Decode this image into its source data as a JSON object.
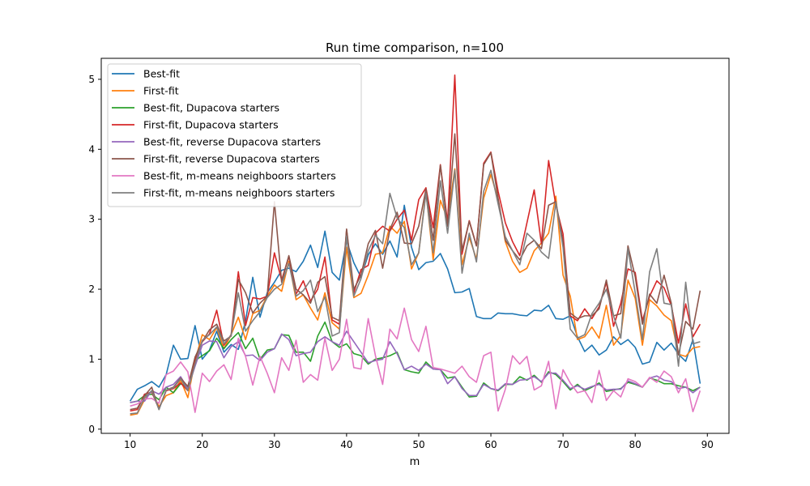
{
  "chart_data": {
    "type": "line",
    "title": "Run time comparison, n=100",
    "xlabel": "m",
    "ylabel": "",
    "xlim": [
      6,
      93
    ],
    "ylim": [
      -0.06,
      5.3
    ],
    "xticks": [
      10,
      20,
      30,
      40,
      50,
      60,
      70,
      80,
      90
    ],
    "yticks": [
      0,
      1,
      2,
      3,
      4,
      5
    ],
    "grid": false,
    "legend_position": "top-left",
    "x": [
      10,
      11,
      12,
      13,
      14,
      15,
      16,
      17,
      18,
      19,
      20,
      21,
      22,
      23,
      24,
      25,
      26,
      27,
      28,
      29,
      30,
      31,
      32,
      33,
      34,
      35,
      36,
      37,
      38,
      39,
      40,
      41,
      42,
      43,
      44,
      45,
      46,
      47,
      48,
      49,
      50,
      51,
      52,
      53,
      54,
      55,
      56,
      57,
      58,
      59,
      60,
      61,
      62,
      63,
      64,
      65,
      66,
      67,
      68,
      69,
      70,
      71,
      72,
      73,
      74,
      75,
      76,
      77,
      78,
      79,
      80,
      81,
      82,
      83,
      84,
      85,
      86,
      87,
      88,
      89
    ],
    "series": [
      {
        "name": "Best-fit",
        "color": "#1f77b4",
        "values": [
          0.4,
          0.57,
          0.62,
          0.68,
          0.6,
          0.78,
          1.2,
          1.0,
          1.01,
          1.48,
          1.0,
          1.13,
          1.4,
          1.1,
          1.21,
          1.14,
          1.55,
          2.17,
          1.6,
          1.95,
          2.1,
          2.27,
          2.3,
          2.25,
          2.4,
          2.63,
          2.31,
          2.83,
          2.24,
          2.13,
          2.69,
          2.38,
          2.17,
          2.49,
          2.65,
          2.5,
          2.69,
          2.46,
          3.2,
          2.6,
          2.28,
          2.38,
          2.4,
          2.51,
          2.29,
          1.95,
          1.96,
          2.01,
          1.61,
          1.58,
          1.58,
          1.66,
          1.65,
          1.65,
          1.63,
          1.62,
          1.7,
          1.69,
          1.77,
          1.58,
          1.57,
          1.62,
          1.32,
          1.11,
          1.2,
          1.06,
          1.13,
          1.32,
          1.21,
          1.28,
          1.17,
          0.93,
          0.96,
          1.24,
          1.13,
          1.23,
          1.07,
          0.97,
          1.28,
          0.65
        ]
      },
      {
        "name": "First-fit",
        "color": "#ff7f0e",
        "values": [
          0.2,
          0.22,
          0.42,
          0.55,
          0.32,
          0.48,
          0.52,
          0.7,
          0.45,
          0.98,
          1.35,
          1.28,
          1.45,
          1.15,
          1.35,
          1.6,
          1.28,
          1.65,
          1.7,
          1.9,
          2.06,
          1.97,
          2.4,
          1.85,
          1.92,
          1.73,
          1.56,
          1.95,
          1.52,
          1.43,
          2.6,
          1.88,
          1.94,
          2.2,
          2.5,
          2.52,
          2.9,
          2.8,
          2.97,
          2.29,
          2.52,
          3.4,
          2.42,
          3.27,
          3.0,
          3.72,
          2.35,
          2.74,
          2.43,
          3.3,
          3.64,
          3.28,
          2.68,
          2.4,
          2.24,
          2.3,
          2.55,
          2.66,
          2.8,
          3.33,
          2.2,
          1.9,
          1.28,
          1.32,
          1.46,
          1.3,
          1.77,
          1.2,
          1.34,
          2.13,
          1.87,
          1.2,
          1.85,
          1.76,
          1.63,
          1.55,
          1.07,
          1.04,
          1.16,
          1.18
        ]
      },
      {
        "name": "Best-fit, Dupacova starters",
        "color": "#2ca02c",
        "values": [
          0.38,
          0.4,
          0.48,
          0.5,
          0.42,
          0.6,
          0.52,
          0.65,
          0.6,
          0.98,
          1.05,
          1.12,
          1.3,
          1.15,
          1.28,
          1.38,
          1.15,
          1.3,
          1.0,
          1.13,
          1.15,
          1.35,
          1.34,
          1.1,
          1.1,
          0.97,
          1.33,
          1.53,
          1.25,
          1.17,
          1.22,
          1.08,
          1.05,
          0.93,
          1.0,
          1.02,
          1.05,
          1.1,
          0.85,
          0.82,
          0.8,
          0.96,
          0.86,
          0.85,
          0.73,
          0.75,
          0.6,
          0.46,
          0.47,
          0.66,
          0.58,
          0.55,
          0.64,
          0.64,
          0.75,
          0.7,
          0.77,
          0.67,
          0.82,
          0.78,
          0.68,
          0.56,
          0.64,
          0.55,
          0.6,
          0.66,
          0.54,
          0.56,
          0.58,
          0.67,
          0.64,
          0.6,
          0.73,
          0.7,
          0.65,
          0.65,
          0.62,
          0.6,
          0.55,
          0.6
        ]
      },
      {
        "name": "First-fit, Dupacova starters",
        "color": "#d62728",
        "values": [
          0.26,
          0.28,
          0.5,
          0.53,
          0.29,
          0.55,
          0.58,
          0.66,
          0.55,
          1.0,
          1.25,
          1.36,
          1.7,
          1.2,
          1.35,
          2.25,
          1.48,
          1.88,
          1.86,
          1.9,
          2.52,
          2.13,
          2.47,
          1.93,
          2.12,
          1.83,
          2.0,
          2.46,
          1.56,
          1.5,
          2.85,
          1.95,
          2.28,
          2.34,
          2.8,
          2.9,
          2.83,
          3.0,
          3.13,
          2.7,
          3.28,
          3.45,
          2.88,
          3.78,
          2.95,
          5.06,
          2.5,
          2.98,
          2.62,
          3.8,
          3.96,
          3.4,
          2.95,
          2.68,
          2.48,
          2.95,
          3.42,
          2.65,
          3.84,
          3.2,
          2.79,
          1.62,
          1.55,
          1.72,
          1.58,
          1.75,
          2.1,
          1.47,
          1.8,
          2.29,
          2.24,
          1.55,
          1.9,
          2.12,
          2.02,
          1.77,
          1.23,
          1.79,
          1.32,
          1.5
        ]
      },
      {
        "name": "Best-fit, reverse Dupacova starters",
        "color": "#9467bd",
        "values": [
          0.38,
          0.4,
          0.4,
          0.55,
          0.5,
          0.6,
          0.64,
          0.75,
          0.58,
          0.9,
          1.2,
          1.26,
          1.25,
          1.02,
          1.18,
          1.25,
          1.05,
          1.06,
          0.98,
          1.1,
          1.15,
          1.36,
          1.28,
          1.05,
          1.08,
          1.1,
          1.25,
          1.32,
          1.25,
          1.2,
          1.4,
          1.25,
          1.1,
          0.95,
          0.98,
          1.0,
          1.25,
          1.08,
          0.85,
          0.9,
          0.84,
          0.93,
          0.86,
          0.85,
          0.65,
          0.75,
          0.58,
          0.48,
          0.48,
          0.64,
          0.58,
          0.56,
          0.65,
          0.64,
          0.7,
          0.71,
          0.75,
          0.68,
          0.8,
          0.8,
          0.7,
          0.58,
          0.62,
          0.57,
          0.61,
          0.64,
          0.56,
          0.57,
          0.57,
          0.69,
          0.65,
          0.6,
          0.73,
          0.76,
          0.7,
          0.68,
          0.58,
          0.6,
          0.52,
          0.6
        ]
      },
      {
        "name": "First-fit, reverse Dupacova starters",
        "color": "#8c564b",
        "values": [
          0.28,
          0.3,
          0.48,
          0.6,
          0.28,
          0.56,
          0.6,
          0.73,
          0.61,
          1.03,
          1.25,
          1.42,
          1.5,
          1.26,
          1.33,
          2.14,
          1.95,
          1.66,
          1.8,
          1.9,
          3.25,
          2.1,
          2.48,
          2.0,
          1.92,
          1.8,
          2.1,
          2.18,
          1.6,
          1.55,
          2.86,
          2.0,
          2.2,
          2.65,
          2.84,
          2.3,
          2.85,
          3.1,
          2.66,
          2.65,
          2.9,
          3.43,
          2.7,
          3.77,
          2.9,
          4.22,
          2.55,
          2.97,
          2.62,
          3.78,
          3.95,
          3.3,
          2.7,
          2.55,
          2.42,
          2.62,
          2.7,
          2.58,
          3.2,
          3.25,
          2.68,
          1.66,
          1.58,
          1.62,
          1.62,
          1.72,
          2.13,
          1.62,
          1.65,
          2.62,
          2.18,
          1.5,
          1.93,
          1.8,
          2.2,
          1.8,
          1.06,
          1.54,
          1.43,
          1.98
        ]
      },
      {
        "name": "Best-fit, m-means neighboors starters",
        "color": "#e377c2",
        "values": [
          0.33,
          0.36,
          0.43,
          0.44,
          0.37,
          0.78,
          0.83,
          0.96,
          0.82,
          0.24,
          0.8,
          0.68,
          0.83,
          0.92,
          0.71,
          1.3,
          1.04,
          0.63,
          1.04,
          0.8,
          0.52,
          1.02,
          0.84,
          1.27,
          0.67,
          0.78,
          0.7,
          1.3,
          0.84,
          1.0,
          1.57,
          0.88,
          0.86,
          1.58,
          1.05,
          0.64,
          1.43,
          1.29,
          1.73,
          1.28,
          1.11,
          1.47,
          0.88,
          0.86,
          0.83,
          0.8,
          0.9,
          0.75,
          0.67,
          1.05,
          1.1,
          0.26,
          0.57,
          1.05,
          0.93,
          1.04,
          0.56,
          0.62,
          0.97,
          0.29,
          0.85,
          0.66,
          0.52,
          0.55,
          0.38,
          0.84,
          0.41,
          0.55,
          0.46,
          0.72,
          0.68,
          0.6,
          0.74,
          0.67,
          0.83,
          0.75,
          0.52,
          0.72,
          0.25,
          0.55
        ]
      },
      {
        "name": "First-fit, m-means neighboors starters",
        "color": "#7f7f7f",
        "values": [
          0.22,
          0.23,
          0.45,
          0.55,
          0.28,
          0.56,
          0.59,
          0.72,
          0.55,
          0.93,
          1.27,
          1.35,
          1.46,
          1.22,
          1.34,
          1.95,
          1.4,
          1.55,
          1.68,
          1.88,
          2.0,
          2.07,
          2.37,
          1.9,
          1.98,
          2.13,
          1.68,
          1.89,
          1.33,
          1.38,
          2.76,
          1.9,
          2.15,
          2.55,
          2.77,
          2.65,
          3.37,
          3.02,
          2.88,
          2.35,
          2.52,
          3.37,
          2.52,
          3.55,
          2.8,
          3.7,
          2.23,
          2.8,
          2.39,
          3.4,
          3.7,
          3.22,
          2.75,
          2.55,
          2.35,
          2.8,
          2.7,
          2.53,
          2.44,
          3.24,
          2.6,
          1.43,
          1.3,
          1.35,
          1.65,
          1.8,
          2.0,
          1.62,
          1.3,
          2.58,
          1.95,
          1.28,
          2.25,
          2.58,
          1.8,
          1.78,
          0.9,
          2.1,
          1.22,
          1.25
        ]
      }
    ]
  }
}
